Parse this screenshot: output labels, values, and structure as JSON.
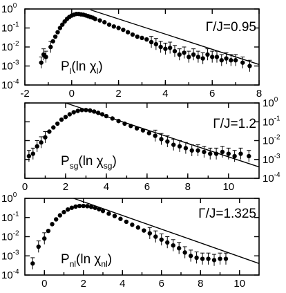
{
  "chart_data": [
    {
      "type": "scatter",
      "param_label": "Γ/J=0.95",
      "ylabel_main": "P",
      "ylabel_sub": "l",
      "ylabel_arg": "(ln χ",
      "ylabel_arg_sub": "l",
      "ylabel_close": ")",
      "log_y": true,
      "xlim": [
        -2,
        8
      ],
      "ylim_exp": [
        -4,
        0
      ],
      "xticks": [
        -2,
        0,
        2,
        4,
        6,
        8
      ],
      "x_tick_labels": [
        "-2",
        "0",
        "2",
        "4",
        "6",
        "8"
      ],
      "yticks_exp": [
        0,
        -1,
        -2,
        -3,
        -4
      ],
      "ytick_side": "left",
      "fit_line": {
        "x": [
          0.8,
          8.0
        ],
        "y": [
          0.9,
          0.0012
        ]
      },
      "points": {
        "x": [
          -1.3,
          -1.2,
          -1.1,
          -0.9,
          -0.8,
          -0.7,
          -0.6,
          -0.5,
          -0.4,
          -0.3,
          -0.2,
          -0.1,
          0.0,
          0.1,
          0.2,
          0.3,
          0.4,
          0.5,
          0.6,
          0.7,
          0.8,
          0.9,
          1.0,
          1.2,
          1.4,
          1.6,
          1.8,
          2.0,
          2.2,
          2.4,
          2.6,
          2.8,
          3.0,
          3.2,
          3.4,
          3.6,
          3.8,
          4.0,
          4.2,
          4.4,
          4.6,
          4.8,
          5.0,
          5.2,
          5.4,
          5.6,
          5.8,
          6.0,
          6.2,
          6.4,
          6.6,
          6.8,
          7.0,
          7.3,
          7.6
        ],
        "y": [
          0.0015,
          0.004,
          0.003,
          0.01,
          0.02,
          0.035,
          0.06,
          0.1,
          0.15,
          0.22,
          0.3,
          0.38,
          0.45,
          0.5,
          0.55,
          0.55,
          0.52,
          0.5,
          0.46,
          0.42,
          0.38,
          0.35,
          0.3,
          0.25,
          0.2,
          0.15,
          0.12,
          0.1,
          0.08,
          0.06,
          0.045,
          0.035,
          0.03,
          0.025,
          0.018,
          0.014,
          0.01,
          0.008,
          0.009,
          0.006,
          0.004,
          0.005,
          0.003,
          0.004,
          0.003,
          0.0025,
          0.004,
          0.003,
          0.003,
          0.002,
          0.0025,
          0.002,
          0.002,
          0.0015,
          0.001
        ]
      }
    },
    {
      "type": "scatter",
      "param_label": "Γ/J=1.2",
      "ylabel_main": "P",
      "ylabel_sub": "sg",
      "ylabel_arg": "(ln χ",
      "ylabel_arg_sub": "sg",
      "ylabel_close": ")",
      "log_y": true,
      "xlim": [
        0,
        11.5
      ],
      "ylim_exp": [
        -4,
        0
      ],
      "xticks": [
        0,
        2,
        4,
        6,
        8,
        10
      ],
      "x_tick_labels": [
        "0",
        "2",
        "4",
        "6",
        "8",
        "10"
      ],
      "yticks_exp": [
        0,
        -1,
        -2,
        -3,
        -4
      ],
      "ytick_side": "right",
      "fit_line": {
        "x": [
          2.0,
          11.5
        ],
        "y": [
          1.0,
          0.0004
        ]
      },
      "points": {
        "x": [
          0.2,
          0.4,
          0.6,
          0.8,
          1.0,
          1.2,
          1.4,
          1.6,
          1.8,
          2.0,
          2.2,
          2.4,
          2.6,
          2.8,
          3.0,
          3.2,
          3.4,
          3.6,
          3.8,
          4.0,
          4.3,
          4.6,
          4.9,
          5.2,
          5.5,
          5.8,
          6.1,
          6.4,
          6.7,
          7.0,
          7.3,
          7.6,
          7.9,
          8.2,
          8.5,
          8.8,
          9.1,
          9.4,
          9.7,
          10.0,
          10.3,
          10.6,
          11.0
        ],
        "y": [
          0.0015,
          0.002,
          0.005,
          0.008,
          0.015,
          0.03,
          0.05,
          0.08,
          0.13,
          0.18,
          0.25,
          0.32,
          0.38,
          0.42,
          0.42,
          0.4,
          0.35,
          0.3,
          0.25,
          0.2,
          0.15,
          0.11,
          0.08,
          0.06,
          0.045,
          0.035,
          0.025,
          0.018,
          0.012,
          0.009,
          0.006,
          0.005,
          0.004,
          0.003,
          0.003,
          0.0025,
          0.002,
          0.002,
          0.0025,
          0.002,
          0.0015,
          0.002,
          0.0015
        ]
      }
    },
    {
      "type": "scatter",
      "param_label": "Γ/J=1.325",
      "ylabel_main": "P",
      "ylabel_sub": "nl",
      "ylabel_arg": "(ln χ",
      "ylabel_arg_sub": "nl",
      "ylabel_close": ")",
      "log_y": true,
      "xlim": [
        -1,
        11
      ],
      "ylim_exp": [
        -4,
        0
      ],
      "xticks": [
        0,
        2,
        4,
        6,
        8,
        10
      ],
      "x_tick_labels": [
        "0",
        "2",
        "4",
        "6",
        "8",
        "10"
      ],
      "yticks_exp": [
        0,
        -1,
        -2,
        -3,
        -4
      ],
      "ytick_side": "left",
      "fit_line": {
        "x": [
          1.5,
          11.0
        ],
        "y": [
          1.0,
          0.0004
        ]
      },
      "points": {
        "x": [
          -0.6,
          -0.3,
          0.0,
          0.2,
          0.4,
          0.6,
          0.8,
          1.0,
          1.2,
          1.4,
          1.6,
          1.8,
          2.0,
          2.2,
          2.4,
          2.6,
          2.8,
          3.0,
          3.3,
          3.6,
          3.9,
          4.2,
          4.5,
          4.8,
          5.1,
          5.4,
          5.7,
          6.0,
          6.3,
          6.6,
          6.9,
          7.2,
          7.5,
          7.8,
          8.1,
          8.4,
          8.7,
          9.0,
          9.3
        ],
        "y": [
          0.0004,
          0.003,
          0.008,
          0.02,
          0.045,
          0.08,
          0.13,
          0.19,
          0.26,
          0.32,
          0.37,
          0.4,
          0.4,
          0.39,
          0.36,
          0.32,
          0.27,
          0.22,
          0.16,
          0.12,
          0.085,
          0.06,
          0.042,
          0.03,
          0.021,
          0.015,
          0.01,
          0.007,
          0.005,
          0.0035,
          0.0025,
          0.0015,
          0.001,
          0.0008,
          0.0007,
          0.0007,
          0.0006,
          0.0007,
          0.0007
        ]
      }
    }
  ]
}
